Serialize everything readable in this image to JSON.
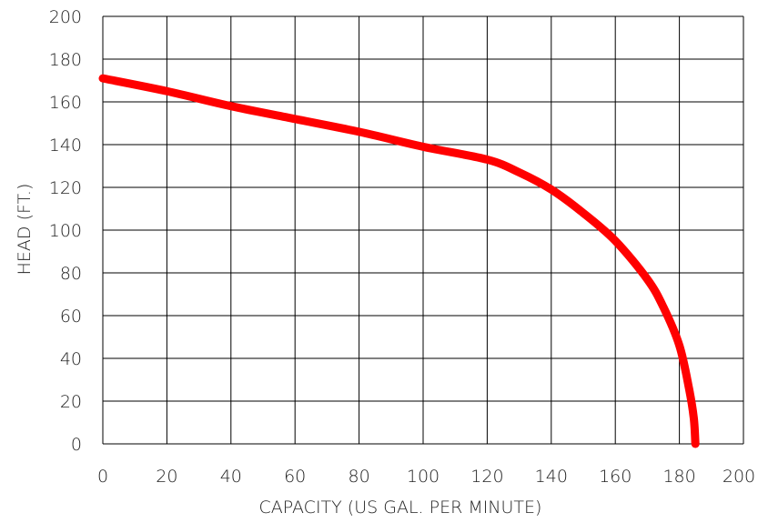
{
  "chart_data": {
    "type": "line",
    "title": "",
    "xlabel": "CAPACITY (US GAL. PER MINUTE)",
    "ylabel": "HEAD (FT.)",
    "xlim": [
      0,
      200
    ],
    "ylim": [
      0,
      200
    ],
    "x_ticks": [
      0,
      20,
      40,
      60,
      80,
      100,
      120,
      140,
      160,
      180,
      200
    ],
    "y_ticks": [
      0,
      20,
      40,
      60,
      80,
      100,
      120,
      140,
      160,
      180,
      200
    ],
    "grid": true,
    "legend": "none",
    "series": [
      {
        "color": "#ff0000",
        "points": [
          [
            0,
            171
          ],
          [
            20,
            165
          ],
          [
            40,
            158
          ],
          [
            60,
            152
          ],
          [
            80,
            146
          ],
          [
            100,
            139
          ],
          [
            120,
            133
          ],
          [
            130,
            127
          ],
          [
            140,
            119
          ],
          [
            150,
            108
          ],
          [
            160,
            95
          ],
          [
            170,
            77
          ],
          [
            175,
            64
          ],
          [
            180,
            46
          ],
          [
            183,
            26
          ],
          [
            184.5,
            12
          ],
          [
            185,
            0
          ]
        ]
      }
    ]
  }
}
